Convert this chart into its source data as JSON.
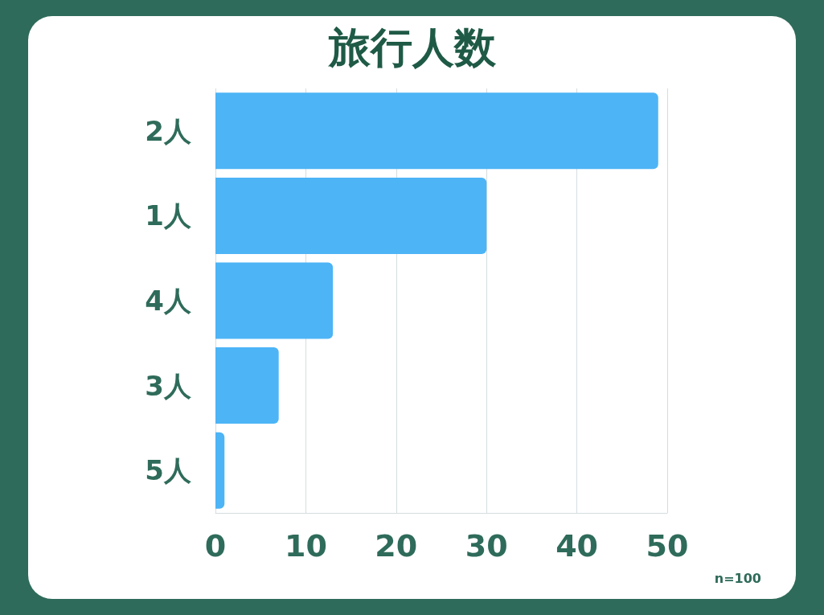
{
  "chart_data": {
    "type": "bar",
    "orientation": "horizontal",
    "title": "旅行人数",
    "categories": [
      "2人",
      "1人",
      "4人",
      "3人",
      "5人"
    ],
    "values": [
      49,
      30,
      13,
      7,
      1
    ],
    "color": "#4db4f6",
    "xlim": [
      0,
      50
    ],
    "xticks": [
      0,
      10,
      20,
      30,
      40,
      50
    ],
    "grid": "x",
    "annotations": [
      "n=100"
    ]
  }
}
